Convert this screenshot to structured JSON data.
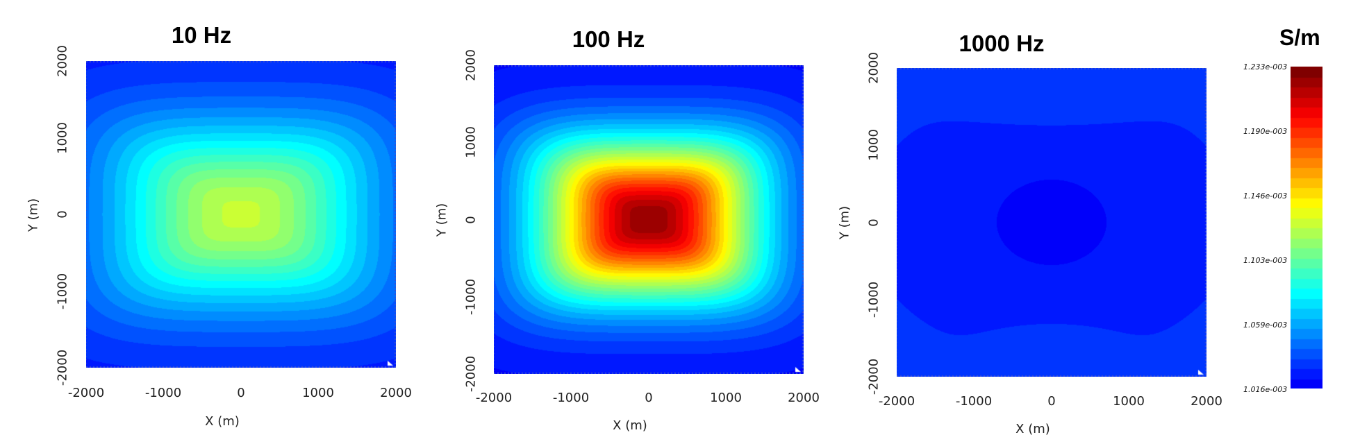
{
  "chart_data": [
    {
      "type": "heatmap",
      "title": "10 Hz",
      "xlabel": "X (m)",
      "ylabel": "Y (m)",
      "xlim": [
        -2000,
        2000
      ],
      "ylim": [
        -2000,
        2000
      ],
      "xticks": [
        "-2000",
        "-1000",
        "0",
        "1000",
        "2000"
      ],
      "yticks": [
        "2000",
        "1000",
        "0",
        "-1000",
        "-2000"
      ],
      "field": {
        "center_value": 0.001128,
        "edge_value": 0.00103,
        "corner_value": 0.001024,
        "shape": "rounded rectangle elongated along X"
      }
    },
    {
      "type": "heatmap",
      "title": "100 Hz",
      "xlabel": "X (m)",
      "ylabel": "Y (m)",
      "xlim": [
        -2000,
        2000
      ],
      "ylim": [
        -2000,
        2000
      ],
      "xticks": [
        "-2000",
        "-1000",
        "0",
        "1000",
        "2000"
      ],
      "yticks": [
        "2000",
        "1000",
        "0",
        "-1000",
        "-2000"
      ],
      "field": {
        "center_value": 0.001231,
        "edge_value": 0.001024,
        "corner_value": 0.00102,
        "shape": "rounded rectangle elongated along X"
      }
    },
    {
      "type": "heatmap",
      "title": "1000 Hz",
      "xlabel": "X (m)",
      "ylabel": "Y (m)",
      "xlim": [
        -2000,
        2000
      ],
      "ylim": [
        -2000,
        2000
      ],
      "xticks": [
        "-2000",
        "-1000",
        "0",
        "1000",
        "2000"
      ],
      "yticks": [
        "2000",
        "1000",
        "0",
        "-1000",
        "-2000"
      ],
      "field": {
        "center_value": 0.001017,
        "edge_value": 0.00103,
        "corner_value": 0.001027,
        "shape": "low at center, higher lobes above and below"
      }
    }
  ],
  "colorbar": {
    "title": "S/m",
    "min": 0.001016,
    "max": 0.001233,
    "labels": [
      "1.233e-003",
      "1.190e-003",
      "1.146e-003",
      "1.103e-003",
      "1.059e-003",
      "1.016e-003"
    ],
    "colormap": "jet",
    "levels": 32
  }
}
